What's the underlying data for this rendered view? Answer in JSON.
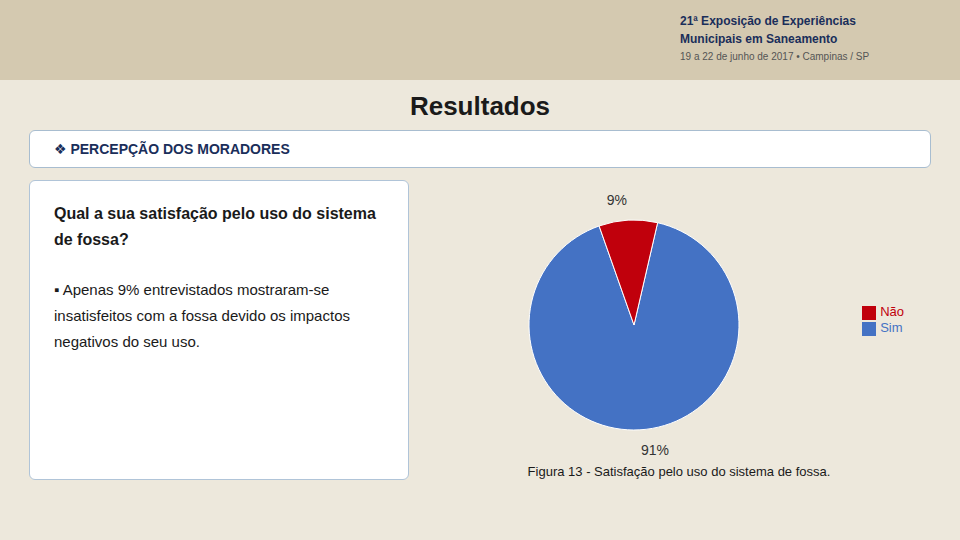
{
  "chart_data": {
    "type": "pie",
    "title": "Resultados",
    "categories": [
      "Sim",
      "Não"
    ],
    "values": [
      91,
      9
    ],
    "value_labels": [
      "91%",
      "9%"
    ],
    "colors": [
      "#4472C4",
      "#C0000C"
    ],
    "data_labels": true,
    "legend": "right",
    "annotations": [
      "21ª Exposição de Experiências",
      "Municipais em Saneamento",
      "19 a 22 de junho de 2017 • Campinas / SP",
      "❖ PERCEPÇÃO DOS MORADORES",
      "Qual a sua satisfação pelo uso do sistema de fossa?",
      "▪ Apenas 9% entrevistados mostraram-se insatisfeitos com a fossa devido os impactos negativos do seu uso.",
      "Figura 13 - Satisfação pelo uso do sistema de fossa."
    ]
  }
}
